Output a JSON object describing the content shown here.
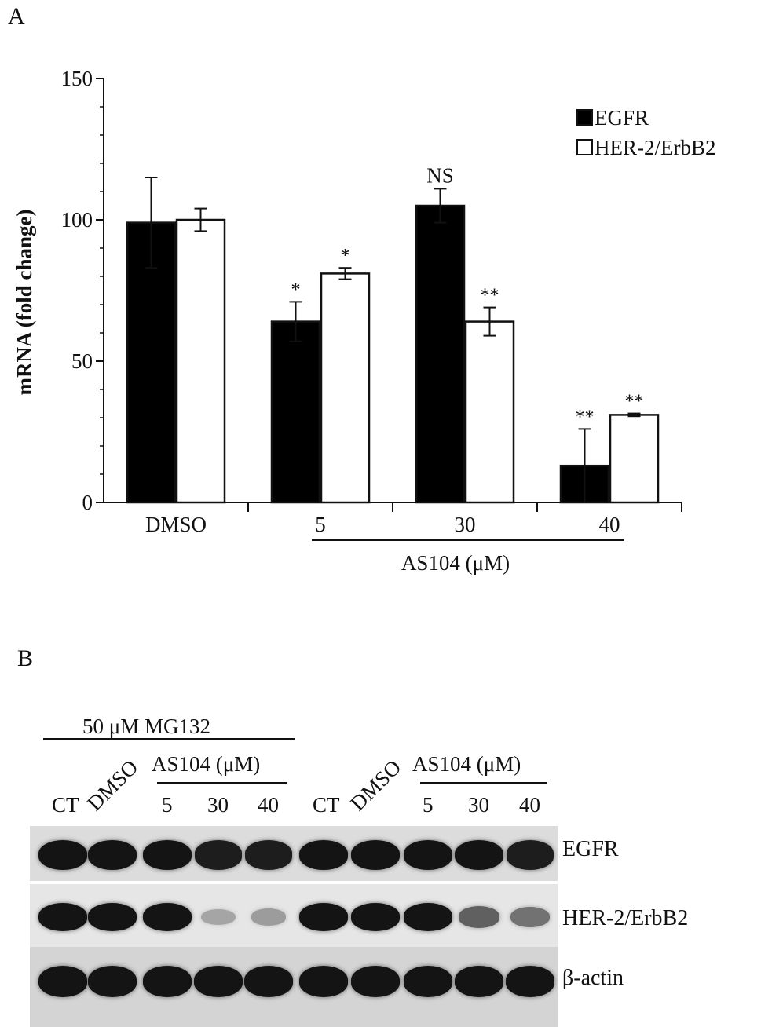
{
  "panel_a": {
    "letter": "A",
    "chart_data": {
      "type": "bar",
      "categories": [
        "DMSO",
        "5",
        "30",
        "40"
      ],
      "series": [
        {
          "name": "EGFR",
          "color": "#000000",
          "values": [
            99,
            64,
            105,
            13
          ],
          "errors": [
            16,
            7,
            6,
            13
          ],
          "significance": [
            "",
            "*",
            "NS",
            "**"
          ]
        },
        {
          "name": "HER-2/ErbB2",
          "color": "#ffffff",
          "values": [
            100,
            81,
            64,
            31
          ],
          "errors": [
            4,
            2,
            5,
            0.5
          ],
          "significance": [
            "",
            "*",
            "**",
            "**"
          ]
        }
      ],
      "ylabel": "mRNA (fold change)",
      "group_label": "AS104 (μM)",
      "yticks": [
        0,
        50,
        100,
        150
      ],
      "ylim": [
        0,
        150
      ],
      "legend_position": "top-right"
    }
  },
  "panel_b": {
    "letter": "B",
    "treatment_label": "50 μM MG132",
    "group_label": "AS104 (μM)",
    "lanes": [
      "CT",
      "DMSO",
      "5",
      "30",
      "40",
      "CT",
      "DMSO",
      "5",
      "30",
      "40"
    ],
    "rows": [
      {
        "name": "EGFR",
        "intensities": [
          1,
          1,
          1,
          0.95,
          0.95,
          1,
          1,
          1,
          1,
          0.95
        ]
      },
      {
        "name": "HER-2/ErbB2",
        "intensities": [
          1,
          1,
          1,
          0.15,
          0.2,
          1,
          1,
          1,
          0.55,
          0.45
        ]
      },
      {
        "name": "β-actin",
        "intensities": [
          1,
          1,
          1,
          1,
          1,
          1,
          1,
          1,
          1,
          1
        ]
      }
    ]
  }
}
